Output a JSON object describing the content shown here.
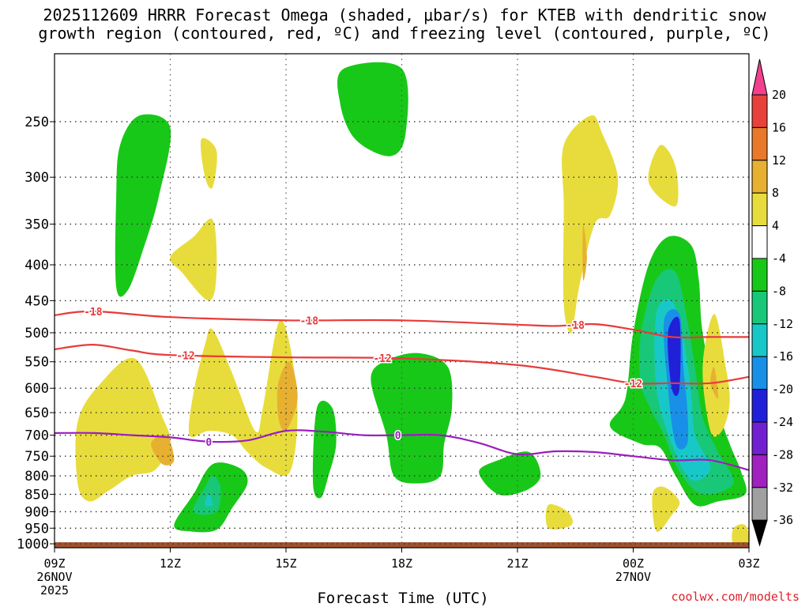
{
  "header": {
    "title_line1": "2025112609 HRRR Forecast Omega (shaded, μbar/s) for KTEB with dendritic snow",
    "title_line2": "growth region (contoured, red, ºC) and freezing level (contoured, purple, ºC)"
  },
  "footer": {
    "credit": "coolwx.com/modelts"
  },
  "chart_data": {
    "type": "contour",
    "xlabel": "Forecast Time (UTC)",
    "ylabel": "",
    "x_ticks": [
      {
        "hour": 0,
        "labels": [
          "09Z",
          "26NOV",
          "2025"
        ]
      },
      {
        "hour": 3,
        "labels": [
          "12Z"
        ]
      },
      {
        "hour": 6,
        "labels": [
          "15Z"
        ]
      },
      {
        "hour": 9,
        "labels": [
          "18Z"
        ]
      },
      {
        "hour": 12,
        "labels": [
          "21Z"
        ]
      },
      {
        "hour": 15,
        "labels": [
          "00Z",
          "27NOV"
        ]
      },
      {
        "hour": 18,
        "labels": [
          "03Z"
        ]
      }
    ],
    "xlim": [
      0,
      18
    ],
    "y_ticks": [
      250,
      300,
      350,
      400,
      450,
      500,
      550,
      600,
      650,
      700,
      750,
      800,
      850,
      900,
      950,
      1000
    ],
    "ylim": [
      200,
      1013
    ],
    "y_scale": "log-pressure",
    "grid": true,
    "colorbar": {
      "labels": [
        "20",
        "16",
        "12",
        "8",
        "4",
        "-4",
        "-8",
        "-12",
        "-16",
        "-20",
        "-24",
        "-28",
        "-32",
        "-36"
      ],
      "colors": [
        "#f2408c",
        "#e8403a",
        "#e8782a",
        "#e8b030",
        "#e8dc3c",
        "#ffffff",
        "#18c818",
        "#18c878",
        "#18c8c8",
        "#1890e8",
        "#2020d8",
        "#7020d0",
        "#a020c0",
        "#a0a0a0",
        "#000000"
      ]
    },
    "contour_lines": [
      {
        "level": -18,
        "color": "#e83a3a",
        "label": "-18",
        "points": [
          [
            0,
            472
          ],
          [
            1,
            466
          ],
          [
            3,
            475
          ],
          [
            6,
            480
          ],
          [
            9,
            480
          ],
          [
            12,
            487
          ],
          [
            13,
            489
          ],
          [
            14,
            486
          ],
          [
            15,
            495
          ],
          [
            16,
            507
          ],
          [
            17,
            507
          ],
          [
            18,
            507
          ]
        ]
      },
      {
        "level": -12,
        "color": "#e83a3a",
        "label": "-12",
        "points": [
          [
            0,
            528
          ],
          [
            1,
            520
          ],
          [
            2,
            530
          ],
          [
            3,
            538
          ],
          [
            6,
            542
          ],
          [
            9,
            544
          ],
          [
            12,
            556
          ],
          [
            14,
            578
          ],
          [
            15,
            590
          ],
          [
            16,
            590
          ],
          [
            17,
            590
          ],
          [
            18,
            578
          ]
        ]
      },
      {
        "level": 0,
        "color": "#9a1ec0",
        "label": "0",
        "points": [
          [
            0,
            695
          ],
          [
            1,
            695
          ],
          [
            2,
            700
          ],
          [
            3,
            705
          ],
          [
            4,
            715
          ],
          [
            5,
            712
          ],
          [
            6,
            690
          ],
          [
            7,
            692
          ],
          [
            8,
            700
          ],
          [
            9,
            700
          ],
          [
            10,
            700
          ],
          [
            11,
            718
          ],
          [
            12,
            745
          ],
          [
            13,
            738
          ],
          [
            14,
            740
          ],
          [
            15,
            750
          ],
          [
            16,
            760
          ],
          [
            17,
            760
          ],
          [
            18,
            785
          ]
        ]
      }
    ],
    "omega_regions": [
      {
        "value": -8,
        "color": "#18c818",
        "points": [
          [
            1.7,
            270
          ],
          [
            2.2,
            245
          ],
          [
            3,
            255
          ],
          [
            2.7,
            320
          ],
          [
            2.3,
            380
          ],
          [
            1.9,
            435
          ],
          [
            1.6,
            430
          ],
          [
            1.6,
            320
          ]
        ]
      },
      {
        "value": 4,
        "color": "#e8dc3c",
        "points": [
          [
            3.8,
            265
          ],
          [
            4.2,
            275
          ],
          [
            4.1,
            310
          ],
          [
            3.9,
            300
          ]
        ]
      },
      {
        "value": 4,
        "color": "#e8dc3c",
        "points": [
          [
            3,
            390
          ],
          [
            3.6,
            365
          ],
          [
            4.1,
            345
          ],
          [
            4.2,
            410
          ],
          [
            4,
            450
          ],
          [
            3.3,
            410
          ]
        ]
      },
      {
        "value": -8,
        "color": "#18c818",
        "points": [
          [
            7.5,
            210
          ],
          [
            9,
            210
          ],
          [
            9.1,
            260
          ],
          [
            8.7,
            280
          ],
          [
            7.8,
            265
          ],
          [
            7.4,
            235
          ]
        ]
      },
      {
        "value": 4,
        "color": "#e8dc3c",
        "points": [
          [
            0.6,
            670
          ],
          [
            1.2,
            590
          ],
          [
            2.1,
            545
          ],
          [
            2.8,
            660
          ],
          [
            3,
            720
          ],
          [
            2.6,
            785
          ],
          [
            2,
            800
          ],
          [
            1.4,
            840
          ],
          [
            0.9,
            870
          ],
          [
            0.6,
            820
          ]
        ]
      },
      {
        "value": 8,
        "color": "#e8b030",
        "points": [
          [
            2.5,
            720
          ],
          [
            2.9,
            700
          ],
          [
            3.1,
            760
          ],
          [
            2.8,
            770
          ]
        ]
      },
      {
        "value": 4,
        "color": "#e8dc3c",
        "points": [
          [
            3.6,
            610
          ],
          [
            3.9,
            520
          ],
          [
            4.1,
            495
          ],
          [
            4.6,
            570
          ],
          [
            5.2,
            690
          ],
          [
            5.4,
            640
          ],
          [
            5.8,
            485
          ],
          [
            6.1,
            520
          ],
          [
            6.3,
            650
          ],
          [
            6.1,
            790
          ],
          [
            5.5,
            780
          ],
          [
            5,
            740
          ],
          [
            4.6,
            700
          ],
          [
            4,
            690
          ],
          [
            3.5,
            700
          ]
        ]
      },
      {
        "value": 8,
        "color": "#e8b030",
        "points": [
          [
            5.8,
            590
          ],
          [
            6.1,
            550
          ],
          [
            6.3,
            620
          ],
          [
            6,
            690
          ],
          [
            5.8,
            660
          ]
        ]
      },
      {
        "value": -8,
        "color": "#18c818",
        "points": [
          [
            3.1,
            940
          ],
          [
            3.6,
            850
          ],
          [
            4.1,
            770
          ],
          [
            4.8,
            780
          ],
          [
            5,
            820
          ],
          [
            4.6,
            890
          ],
          [
            4.2,
            955
          ],
          [
            3.5,
            960
          ]
        ]
      },
      {
        "value": -12,
        "color": "#18c878",
        "points": [
          [
            3.6,
            900
          ],
          [
            3.9,
            830
          ],
          [
            4.1,
            800
          ],
          [
            4.3,
            830
          ],
          [
            4.2,
            900
          ]
        ]
      },
      {
        "value": -16,
        "color": "#18c8c8",
        "points": [
          [
            3.9,
            880
          ],
          [
            4,
            850
          ],
          [
            4.1,
            880
          ]
        ]
      },
      {
        "value": -8,
        "color": "#18c818",
        "points": [
          [
            6.8,
            640
          ],
          [
            7.2,
            640
          ],
          [
            7.3,
            720
          ],
          [
            7.1,
            800
          ],
          [
            6.9,
            860
          ],
          [
            6.7,
            820
          ]
        ]
      },
      {
        "value": -8,
        "color": "#18c818",
        "points": [
          [
            8.2,
            580
          ],
          [
            8.7,
            545
          ],
          [
            9.5,
            535
          ],
          [
            10.2,
            560
          ],
          [
            10.3,
            640
          ],
          [
            10.1,
            720
          ],
          [
            10,
            800
          ],
          [
            9.4,
            820
          ],
          [
            8.8,
            800
          ],
          [
            8.6,
            700
          ]
        ]
      },
      {
        "value": -8,
        "color": "#18c818",
        "points": [
          [
            11,
            790
          ],
          [
            11.5,
            760
          ],
          [
            12.3,
            740
          ],
          [
            12.6,
            800
          ],
          [
            12.2,
            840
          ],
          [
            11.5,
            850
          ]
        ]
      },
      {
        "value": 4,
        "color": "#e8dc3c",
        "points": [
          [
            13.2,
            270
          ],
          [
            13.9,
            245
          ],
          [
            14.2,
            260
          ],
          [
            14.6,
            300
          ],
          [
            14.4,
            340
          ],
          [
            14,
            350
          ],
          [
            13.6,
            430
          ],
          [
            13.4,
            500
          ],
          [
            13.2,
            455
          ],
          [
            13.2,
            330
          ]
        ]
      },
      {
        "value": 8,
        "color": "#e8b030",
        "points": [
          [
            13.7,
            350
          ],
          [
            13.8,
            390
          ],
          [
            13.7,
            420
          ]
        ]
      },
      {
        "value": 4,
        "color": "#e8dc3c",
        "points": [
          [
            15.4,
            305
          ],
          [
            15.7,
            270
          ],
          [
            16.1,
            290
          ],
          [
            16.1,
            330
          ]
        ]
      },
      {
        "value": -8,
        "color": "#18c818",
        "points": [
          [
            15,
            500
          ],
          [
            15.4,
            400
          ],
          [
            15.9,
            365
          ],
          [
            16.5,
            375
          ],
          [
            16.7,
            420
          ],
          [
            16.8,
            500
          ],
          [
            17.2,
            640
          ],
          [
            17.5,
            720
          ],
          [
            17.8,
            790
          ],
          [
            17.9,
            850
          ],
          [
            17.2,
            870
          ],
          [
            16.6,
            880
          ],
          [
            16.1,
            800
          ],
          [
            15.7,
            730
          ],
          [
            15.2,
            720
          ],
          [
            14.4,
            680
          ],
          [
            14.8,
            620
          ]
        ]
      },
      {
        "value": -12,
        "color": "#18c878",
        "points": [
          [
            15.2,
            500
          ],
          [
            15.6,
            420
          ],
          [
            16.1,
            410
          ],
          [
            16.4,
            480
          ],
          [
            16.6,
            560
          ],
          [
            16.8,
            660
          ],
          [
            17.2,
            740
          ],
          [
            17.6,
            820
          ],
          [
            16.8,
            850
          ],
          [
            16.2,
            790
          ],
          [
            15.8,
            700
          ],
          [
            15.5,
            650
          ],
          [
            15.2,
            590
          ]
        ]
      },
      {
        "value": -16,
        "color": "#18c8c8",
        "points": [
          [
            15.6,
            470
          ],
          [
            16,
            450
          ],
          [
            16.3,
            510
          ],
          [
            16.5,
            610
          ],
          [
            16.6,
            700
          ],
          [
            17,
            780
          ],
          [
            16.5,
            810
          ],
          [
            16,
            720
          ],
          [
            15.6,
            600
          ]
        ]
      },
      {
        "value": -20,
        "color": "#1890e8",
        "points": [
          [
            15.8,
            480
          ],
          [
            16.2,
            470
          ],
          [
            16.3,
            560
          ],
          [
            16.4,
            640
          ],
          [
            16.4,
            720
          ],
          [
            16.1,
            720
          ],
          [
            15.9,
            600
          ]
        ]
      },
      {
        "value": -24,
        "color": "#2020d8",
        "points": [
          [
            15.9,
            500
          ],
          [
            16.2,
            480
          ],
          [
            16.2,
            600
          ],
          [
            16,
            600
          ]
        ]
      },
      {
        "value": 4,
        "color": "#e8dc3c",
        "points": [
          [
            16.8,
            560
          ],
          [
            17.1,
            470
          ],
          [
            17.4,
            560
          ],
          [
            17.5,
            630
          ],
          [
            17.3,
            690
          ],
          [
            17,
            690
          ]
        ]
      },
      {
        "value": 8,
        "color": "#e8b030",
        "points": [
          [
            17,
            590
          ],
          [
            17.1,
            560
          ],
          [
            17.2,
            620
          ]
        ]
      },
      {
        "value": 4,
        "color": "#e8dc3c",
        "points": [
          [
            15.5,
            850
          ],
          [
            15.8,
            830
          ],
          [
            16.2,
            870
          ],
          [
            16,
            910
          ],
          [
            15.6,
            960
          ]
        ]
      },
      {
        "value": 4,
        "color": "#e8dc3c",
        "points": [
          [
            12.8,
            880
          ],
          [
            13.3,
            900
          ],
          [
            13.4,
            940
          ],
          [
            12.8,
            950
          ]
        ]
      },
      {
        "value": 4,
        "color": "#e8dc3c",
        "points": [
          [
            17.6,
            950
          ],
          [
            17.9,
            940
          ],
          [
            18,
            990
          ],
          [
            17.6,
            1000
          ]
        ]
      }
    ],
    "surface": {
      "color": "#a0522d",
      "pressure_top": 995
    }
  }
}
